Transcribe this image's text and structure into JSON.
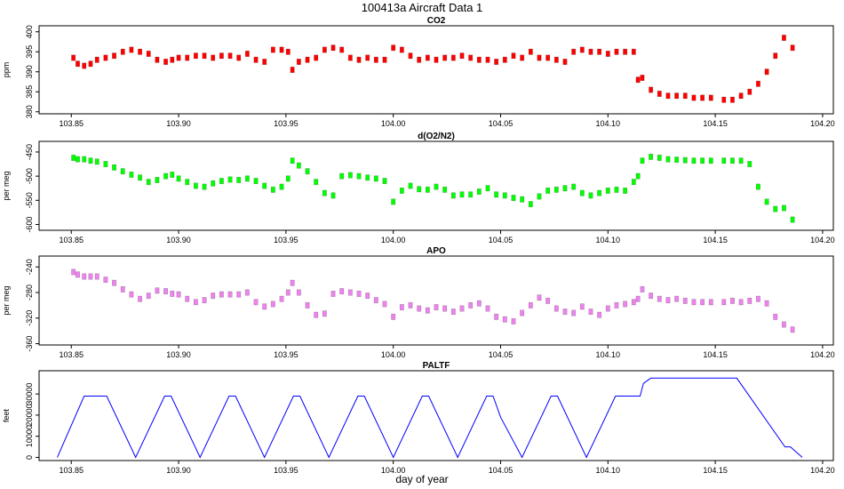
{
  "page": {
    "title": "100413a   Aircraft Data 1"
  },
  "chart_data": [
    {
      "type": "scatter",
      "title": "CO2",
      "ylabel": "ppm",
      "color": "#ff0000",
      "xlim": [
        103.835,
        104.205
      ],
      "ylim": [
        379.5,
        401.5
      ],
      "xticks": [
        103.85,
        103.9,
        103.95,
        104.0,
        104.05,
        104.1,
        104.15,
        104.2
      ],
      "xtick_labels": [
        "103.85",
        "103.90",
        "103.95",
        "104.00",
        "104.05",
        "104.10",
        "104.15",
        "104.20"
      ],
      "yticks": [
        380,
        385,
        390,
        395,
        400
      ],
      "ytick_labels": [
        "380",
        "385",
        "390",
        "395",
        "400"
      ],
      "x": [
        103.851,
        103.853,
        103.856,
        103.859,
        103.862,
        103.866,
        103.87,
        103.874,
        103.878,
        103.882,
        103.886,
        103.89,
        103.894,
        103.897,
        103.9,
        103.904,
        103.908,
        103.912,
        103.916,
        103.92,
        103.924,
        103.928,
        103.932,
        103.936,
        103.94,
        103.944,
        103.948,
        103.951,
        103.953,
        103.956,
        103.96,
        103.964,
        103.968,
        103.972,
        103.976,
        103.98,
        103.984,
        103.988,
        103.992,
        103.996,
        104.0,
        104.004,
        104.008,
        104.012,
        104.016,
        104.02,
        104.024,
        104.028,
        104.032,
        104.036,
        104.04,
        104.044,
        104.048,
        104.052,
        104.056,
        104.06,
        104.064,
        104.068,
        104.072,
        104.076,
        104.08,
        104.084,
        104.088,
        104.092,
        104.096,
        104.1,
        104.104,
        104.108,
        104.112,
        104.114,
        104.116,
        104.12,
        104.124,
        104.128,
        104.132,
        104.136,
        104.14,
        104.144,
        104.148,
        104.154,
        104.158,
        104.162,
        104.166,
        104.17,
        104.174,
        104.178,
        104.182,
        104.186
      ],
      "y": [
        393.5,
        392.0,
        391.5,
        392.0,
        393.0,
        393.5,
        394.0,
        395.0,
        395.5,
        395.0,
        394.5,
        393.0,
        392.5,
        393.0,
        393.5,
        393.5,
        394.0,
        394.0,
        393.5,
        394.0,
        394.0,
        393.5,
        394.5,
        393.0,
        392.5,
        395.5,
        395.5,
        395.0,
        390.5,
        392.5,
        393.0,
        393.5,
        395.5,
        396.0,
        395.5,
        393.5,
        393.0,
        393.5,
        393.0,
        393.0,
        396.0,
        395.5,
        394.0,
        393.0,
        393.5,
        393.0,
        393.5,
        393.5,
        394.0,
        393.5,
        393.0,
        393.0,
        392.5,
        393.0,
        394.0,
        393.5,
        395.0,
        393.5,
        393.5,
        393.0,
        392.5,
        395.0,
        395.5,
        395.0,
        395.0,
        394.5,
        395.0,
        395.0,
        395.0,
        388.0,
        388.5,
        385.5,
        384.5,
        384.0,
        384.0,
        384.0,
        383.5,
        383.5,
        383.5,
        383.0,
        383.0,
        384.0,
        385.0,
        387.0,
        390.0,
        394.0,
        398.5,
        396.0
      ]
    },
    {
      "type": "scatter",
      "title": "d(O2/N2)",
      "ylabel": "per meg",
      "color": "#00ff00",
      "xlim": [
        103.835,
        104.205
      ],
      "ylim": [
        -612,
        -428
      ],
      "xticks": [
        103.85,
        103.9,
        103.95,
        104.0,
        104.05,
        104.1,
        104.15,
        104.2
      ],
      "xtick_labels": [
        "103.85",
        "103.90",
        "103.95",
        "104.00",
        "104.05",
        "104.10",
        "104.15",
        "104.20"
      ],
      "yticks": [
        -600,
        -550,
        -500,
        -450
      ],
      "ytick_labels": [
        "-600",
        "-550",
        "-500",
        "-450"
      ],
      "x": [
        103.851,
        103.853,
        103.856,
        103.859,
        103.862,
        103.866,
        103.87,
        103.874,
        103.878,
        103.882,
        103.886,
        103.89,
        103.894,
        103.897,
        103.9,
        103.904,
        103.908,
        103.912,
        103.916,
        103.92,
        103.924,
        103.928,
        103.932,
        103.936,
        103.94,
        103.944,
        103.948,
        103.951,
        103.953,
        103.956,
        103.96,
        103.964,
        103.968,
        103.972,
        103.976,
        103.98,
        103.984,
        103.988,
        103.992,
        103.996,
        104.0,
        104.004,
        104.008,
        104.012,
        104.016,
        104.02,
        104.024,
        104.028,
        104.032,
        104.036,
        104.04,
        104.044,
        104.048,
        104.052,
        104.056,
        104.06,
        104.064,
        104.068,
        104.072,
        104.076,
        104.08,
        104.084,
        104.088,
        104.092,
        104.096,
        104.1,
        104.104,
        104.108,
        104.112,
        104.114,
        104.116,
        104.12,
        104.124,
        104.128,
        104.132,
        104.136,
        104.14,
        104.144,
        104.148,
        104.154,
        104.158,
        104.162,
        104.166,
        104.17,
        104.174,
        104.178,
        104.182,
        104.186
      ],
      "y": [
        -462,
        -465,
        -465,
        -468,
        -470,
        -475,
        -482,
        -490,
        -497,
        -503,
        -512,
        -508,
        -500,
        -497,
        -505,
        -512,
        -520,
        -522,
        -515,
        -510,
        -507,
        -508,
        -505,
        -510,
        -520,
        -528,
        -522,
        -505,
        -468,
        -478,
        -490,
        -512,
        -535,
        -540,
        -500,
        -498,
        -500,
        -503,
        -505,
        -510,
        -553,
        -530,
        -520,
        -527,
        -528,
        -522,
        -528,
        -540,
        -538,
        -538,
        -532,
        -525,
        -538,
        -540,
        -545,
        -548,
        -558,
        -542,
        -530,
        -528,
        -525,
        -522,
        -535,
        -540,
        -535,
        -530,
        -528,
        -530,
        -512,
        -500,
        -468,
        -460,
        -462,
        -465,
        -466,
        -467,
        -468,
        -468,
        -468,
        -468,
        -468,
        -468,
        -475,
        -522,
        -553,
        -568,
        -566,
        -590
      ]
    },
    {
      "type": "scatter",
      "title": "APO",
      "ylabel": "per meg",
      "color": "#ee82ee",
      "xlim": [
        103.835,
        104.205
      ],
      "ylim": [
        -362,
        -223
      ],
      "xticks": [
        103.85,
        103.9,
        103.95,
        104.0,
        104.05,
        104.1,
        104.15,
        104.2
      ],
      "xtick_labels": [
        "103.85",
        "103.90",
        "103.95",
        "104.00",
        "104.05",
        "104.10",
        "104.15",
        "104.20"
      ],
      "yticks": [
        -360,
        -320,
        -280,
        -240
      ],
      "ytick_labels": [
        "-360",
        "-320",
        "-280",
        "-240"
      ],
      "x": [
        103.851,
        103.853,
        103.856,
        103.859,
        103.862,
        103.866,
        103.87,
        103.874,
        103.878,
        103.882,
        103.886,
        103.89,
        103.894,
        103.897,
        103.9,
        103.904,
        103.908,
        103.912,
        103.916,
        103.92,
        103.924,
        103.928,
        103.932,
        103.936,
        103.94,
        103.944,
        103.948,
        103.951,
        103.953,
        103.956,
        103.96,
        103.964,
        103.968,
        103.972,
        103.976,
        103.98,
        103.984,
        103.988,
        103.992,
        103.996,
        104.0,
        104.004,
        104.008,
        104.012,
        104.016,
        104.02,
        104.024,
        104.028,
        104.032,
        104.036,
        104.04,
        104.044,
        104.048,
        104.052,
        104.056,
        104.06,
        104.064,
        104.068,
        104.072,
        104.076,
        104.08,
        104.084,
        104.088,
        104.092,
        104.096,
        104.1,
        104.104,
        104.108,
        104.112,
        104.114,
        104.116,
        104.12,
        104.124,
        104.128,
        104.132,
        104.136,
        104.14,
        104.144,
        104.148,
        104.154,
        104.158,
        104.162,
        104.166,
        104.17,
        104.174,
        104.178,
        104.182,
        104.186
      ],
      "y": [
        -248,
        -252,
        -255,
        -255,
        -255,
        -260,
        -265,
        -275,
        -283,
        -290,
        -285,
        -277,
        -278,
        -282,
        -283,
        -290,
        -295,
        -292,
        -285,
        -283,
        -283,
        -283,
        -280,
        -295,
        -302,
        -298,
        -290,
        -280,
        -265,
        -280,
        -300,
        -315,
        -313,
        -282,
        -278,
        -280,
        -282,
        -285,
        -292,
        -298,
        -318,
        -303,
        -300,
        -305,
        -308,
        -303,
        -305,
        -310,
        -305,
        -300,
        -297,
        -305,
        -318,
        -322,
        -325,
        -312,
        -300,
        -288,
        -293,
        -305,
        -310,
        -312,
        -302,
        -310,
        -315,
        -305,
        -300,
        -298,
        -295,
        -290,
        -275,
        -285,
        -290,
        -292,
        -290,
        -293,
        -295,
        -295,
        -295,
        -295,
        -293,
        -295,
        -293,
        -290,
        -297,
        -318,
        -330,
        -338
      ]
    },
    {
      "type": "line",
      "title": "PALTF",
      "ylabel": "feet",
      "xlabel": "day of year",
      "color": "#0000ff",
      "xlim": [
        103.835,
        104.205
      ],
      "ylim": [
        -1500,
        41000
      ],
      "xticks": [
        103.85,
        103.9,
        103.95,
        104.0,
        104.05,
        104.1,
        104.15,
        104.2
      ],
      "xtick_labels": [
        "103.85",
        "103.90",
        "103.95",
        "104.00",
        "104.05",
        "104.10",
        "104.15",
        "104.20"
      ],
      "yticks": [
        0,
        10000,
        20000,
        30000
      ],
      "ytick_labels": [
        "0",
        "10000",
        "20000",
        "30000"
      ],
      "x": [
        103.8435,
        103.856,
        103.858,
        103.8635,
        103.8665,
        103.88,
        103.8935,
        103.8965,
        103.91,
        103.9235,
        103.9265,
        103.94,
        103.9535,
        103.9565,
        103.97,
        103.9835,
        103.9865,
        104.0,
        104.0135,
        104.0165,
        104.03,
        104.0435,
        104.0465,
        104.05,
        104.06,
        104.0735,
        104.0765,
        104.09,
        104.1035,
        104.115,
        104.1165,
        104.12,
        104.126,
        104.16,
        104.1825,
        104.185,
        104.1905
      ],
      "y": [
        0,
        29000,
        29000,
        29000,
        29000,
        0,
        29000,
        29000,
        0,
        29000,
        29000,
        0,
        29000,
        29000,
        0,
        29000,
        29000,
        0,
        29000,
        29000,
        0,
        29000,
        29000,
        19000,
        0,
        29000,
        29000,
        0,
        29000,
        29000,
        35000,
        37500,
        37500,
        37500,
        5000,
        5000,
        0
      ]
    }
  ]
}
